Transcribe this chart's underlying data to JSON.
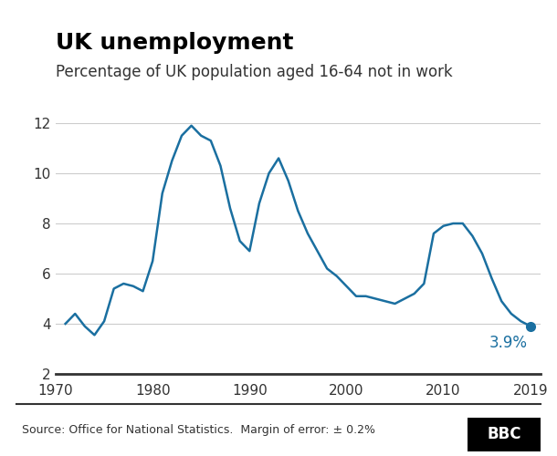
{
  "title": "UK unemployment",
  "subtitle": "Percentage of UK population aged 16-64 not in work",
  "source": "Source: Office for National Statistics.  Margin of error: ± 0.2%",
  "bbc_logo": "BBC",
  "line_color": "#1a6fa0",
  "dot_color": "#1a6fa0",
  "annotation_text": "3.9%",
  "annotation_color": "#1a6fa0",
  "ylim": [
    2,
    12
  ],
  "yticks": [
    2,
    4,
    6,
    8,
    10,
    12
  ],
  "xticks": [
    1970,
    1980,
    1990,
    2000,
    2010,
    2019
  ],
  "grid_color": "#cccccc",
  "background_color": "#ffffff",
  "line_width": 1.8,
  "data": {
    "years": [
      1971,
      1972,
      1973,
      1974,
      1975,
      1976,
      1977,
      1978,
      1979,
      1980,
      1981,
      1982,
      1983,
      1984,
      1985,
      1986,
      1987,
      1988,
      1989,
      1990,
      1991,
      1992,
      1993,
      1994,
      1995,
      1996,
      1997,
      1998,
      1999,
      2000,
      2001,
      2002,
      2003,
      2004,
      2005,
      2006,
      2007,
      2008,
      2009,
      2010,
      2011,
      2012,
      2013,
      2014,
      2015,
      2016,
      2017,
      2018,
      2019
    ],
    "values": [
      4.0,
      4.4,
      3.9,
      3.55,
      4.1,
      5.4,
      5.6,
      5.5,
      5.3,
      6.5,
      9.2,
      10.5,
      11.5,
      11.9,
      11.5,
      11.3,
      10.3,
      8.6,
      7.3,
      6.9,
      8.8,
      10.0,
      10.6,
      9.7,
      8.5,
      7.6,
      6.9,
      6.2,
      5.9,
      5.5,
      5.1,
      5.1,
      5.0,
      4.9,
      4.8,
      5.0,
      5.2,
      5.6,
      7.6,
      7.9,
      8.0,
      8.0,
      7.5,
      6.8,
      5.8,
      4.9,
      4.4,
      4.1,
      3.9
    ]
  }
}
